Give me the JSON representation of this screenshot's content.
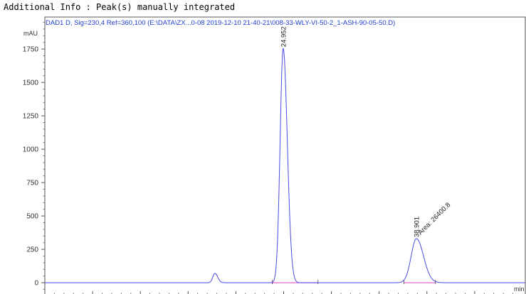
{
  "info_line": "Additional Info : Peak(s) manually integrated",
  "chart_data": {
    "type": "line",
    "title": "DAD1 D, Sig=230,4 Ref=360,100 (E:\\DATA\\ZX...0-08 2019-12-10 21-40-21\\008-33-WLY-VI-50-2_1-ASH-90-05-50.D)",
    "ylabel": "mAU",
    "xlabel": "min",
    "xlim": [
      0,
      50.3
    ],
    "ylim": [
      -90,
      1990
    ],
    "x_ticks": [
      5,
      10,
      15,
      20,
      25,
      30,
      35,
      40,
      45
    ],
    "y_ticks": [
      0,
      250,
      500,
      750,
      1000,
      1250,
      1500,
      1750
    ],
    "line_color": "#4a4ae0",
    "baseline_color": "#e040d0",
    "peaks": [
      {
        "time": 17.8,
        "height": 70,
        "sigma": 0.22,
        "label": ""
      },
      {
        "time": 24.952,
        "height": 1755,
        "sigma": 0.32,
        "label": "24.952"
      },
      {
        "time": 38.901,
        "height": 330,
        "sigma": 0.55,
        "label": "38.901",
        "area_label": "Area: 26400.8"
      }
    ],
    "integration_baselines": [
      [
        23.8,
        28.6
      ],
      [
        37.6,
        40.9
      ]
    ]
  }
}
